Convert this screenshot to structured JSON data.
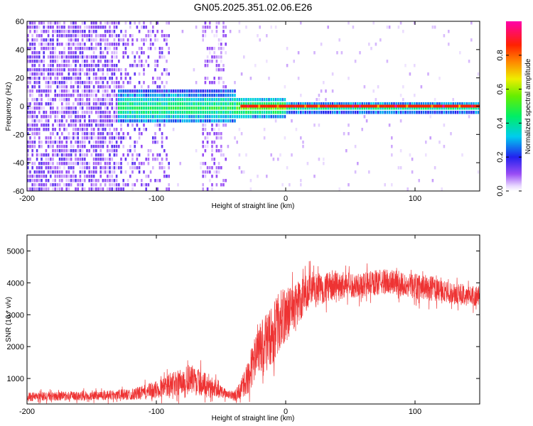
{
  "figure_title": "GN05.2025.351.02.06.E26",
  "chart_data": [
    {
      "type": "heatmap",
      "title": "GN05.2025.351.02.06.E26",
      "xlabel": "Height of straight line (km)",
      "ylabel": "Frequency (Hz)",
      "xlim": [
        -200,
        150
      ],
      "ylim": [
        -60,
        60
      ],
      "xticks": [
        -200,
        -100,
        0,
        100
      ],
      "yticks": [
        60,
        40,
        20,
        0,
        -20,
        -40,
        -60
      ],
      "xtick_labels": [
        "-200",
        "-100",
        "0",
        "100"
      ],
      "ytick_labels": [
        "60",
        "40",
        "20",
        "0",
        "-20",
        "-40",
        "-60"
      ],
      "colorbar": {
        "label": "Normalized spectral amplitude",
        "range": [
          0,
          1
        ],
        "ticks": [
          0.0,
          0.2,
          0.4,
          0.6,
          0.8
        ],
        "tick_labels": [
          "0.0",
          "0.2",
          "0.4",
          "0.6",
          "0.8"
        ],
        "colormap": "rainbow (white-violet-blue-cyan-green-yellow-orange-red-magenta)"
      },
      "description_data": {
        "noise_region_x": [
          -200,
          -95
        ],
        "noise_stripe_x": [
          -65,
          -47
        ],
        "band_start_x": -130,
        "peak_frequency_hz": 0
      }
    },
    {
      "type": "line",
      "xlabel": "Height of straight line (km)",
      "ylabel": "SNR (10 * v/v)",
      "xlim": [
        -200,
        150
      ],
      "ylim": [
        200,
        5500
      ],
      "xticks": [
        -200,
        -100,
        0,
        100
      ],
      "yticks": [
        1000,
        2000,
        3000,
        4000,
        5000
      ],
      "xtick_labels": [
        "-200",
        "-100",
        "0",
        "100"
      ],
      "ytick_labels": [
        "1000",
        "2000",
        "3000",
        "4000",
        "5000"
      ],
      "series": [
        {
          "name": "SNR",
          "color": "#ee3333",
          "x": [
            -200,
            -180,
            -160,
            -140,
            -120,
            -110,
            -100,
            -90,
            -80,
            -72,
            -65,
            -55,
            -45,
            -38,
            -30,
            -25,
            -18,
            -10,
            -5,
            0,
            5,
            10,
            15,
            20,
            25,
            30,
            40,
            50,
            60,
            70,
            80,
            90,
            100,
            110,
            120,
            130,
            140,
            150
          ],
          "mean": [
            420,
            440,
            450,
            480,
            500,
            560,
            650,
            780,
            900,
            950,
            860,
            700,
            480,
            500,
            950,
            1500,
            2000,
            2400,
            2800,
            3000,
            3200,
            3400,
            3600,
            3700,
            3800,
            3850,
            3900,
            3920,
            3950,
            4000,
            4050,
            3950,
            3900,
            3850,
            3750,
            3650,
            3600,
            3600
          ],
          "amp": [
            180,
            180,
            180,
            200,
            220,
            280,
            350,
            450,
            550,
            600,
            500,
            350,
            150,
            250,
            600,
            900,
            1100,
            1200,
            1200,
            1100,
            1000,
            900,
            800,
            700,
            650,
            600,
            550,
            500,
            500,
            500,
            500,
            500,
            500,
            500,
            450,
            400,
            400,
            400
          ]
        }
      ]
    }
  ]
}
